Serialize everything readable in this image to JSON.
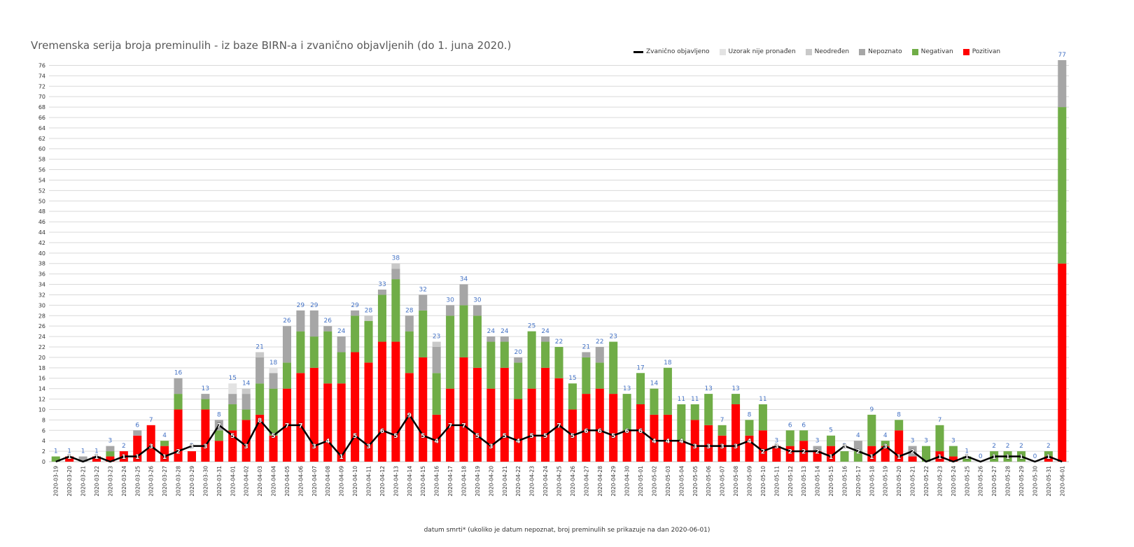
{
  "chart_data": {
    "type": "bar",
    "title": "Vremenska serija broja preminulih - iz baze BIRN-a i zvanično objavljenih (do 1. juna 2020.)",
    "xlabel": "datum smrti*  (ukoliko je datum nepoznat, broj preminulih se prikazuje na dan 2020-06-01)",
    "ylabel": "",
    "ylim": [
      0,
      77
    ],
    "yticks": [
      0,
      2,
      4,
      6,
      8,
      10,
      12,
      14,
      16,
      18,
      20,
      22,
      24,
      26,
      28,
      30,
      32,
      34,
      36,
      38,
      40,
      42,
      44,
      46,
      48,
      50,
      52,
      54,
      56,
      58,
      60,
      62,
      64,
      66,
      68,
      70,
      72,
      74,
      76
    ],
    "grid": "horizontal",
    "legend_position": "top-right",
    "categories": [
      "2020-03-19",
      "2020-03-20",
      "2020-03-21",
      "2020-03-22",
      "2020-03-23",
      "2020-03-24",
      "2020-03-25",
      "2020-03-26",
      "2020-03-27",
      "2020-03-28",
      "2020-03-29",
      "2020-03-30",
      "2020-03-31",
      "2020-04-01",
      "2020-04-02",
      "2020-04-03",
      "2020-04-04",
      "2020-04-05",
      "2020-04-06",
      "2020-04-07",
      "2020-04-08",
      "2020-04-09",
      "2020-04-10",
      "2020-04-11",
      "2020-04-12",
      "2020-04-13",
      "2020-04-14",
      "2020-04-15",
      "2020-04-16",
      "2020-04-17",
      "2020-04-18",
      "2020-04-19",
      "2020-04-20",
      "2020-04-21",
      "2020-04-22",
      "2020-04-23",
      "2020-04-24",
      "2020-04-25",
      "2020-04-26",
      "2020-04-27",
      "2020-04-28",
      "2020-04-29",
      "2020-04-30",
      "2020-05-01",
      "2020-05-02",
      "2020-05-03",
      "2020-05-04",
      "2020-05-05",
      "2020-05-06",
      "2020-05-07",
      "2020-05-08",
      "2020-05-09",
      "2020-05-10",
      "2020-05-11",
      "2020-05-12",
      "2020-05-13",
      "2020-05-14",
      "2020-05-15",
      "2020-05-16",
      "2020-05-17",
      "2020-05-18",
      "2020-05-19",
      "2020-05-20",
      "2020-05-21",
      "2020-05-22",
      "2020-05-23",
      "2020-05-24",
      "2020-05-25",
      "2020-05-26",
      "2020-05-27",
      "2020-05-28",
      "2020-05-29",
      "2020-05-30",
      "2020-05-31",
      "2020-06-01"
    ],
    "totals": [
      1,
      1,
      1,
      1,
      3,
      2,
      6,
      7,
      4,
      16,
      2,
      13,
      8,
      15,
      14,
      21,
      18,
      26,
      29,
      29,
      26,
      24,
      29,
      28,
      33,
      38,
      28,
      32,
      23,
      30,
      34,
      30,
      24,
      24,
      20,
      25,
      24,
      22,
      15,
      21,
      22,
      23,
      13,
      17,
      14,
      18,
      11,
      11,
      13,
      7,
      13,
      8,
      11,
      3,
      6,
      6,
      3,
      5,
      2,
      4,
      9,
      4,
      8,
      3,
      3,
      7,
      3,
      1,
      0,
      2,
      2,
      2,
      0,
      2,
      77
    ],
    "series": [
      {
        "name": "Pozitivan",
        "color": "#ff0000",
        "values": [
          0,
          1,
          0,
          1,
          1,
          2,
          5,
          7,
          3,
          10,
          2,
          10,
          4,
          6,
          8,
          9,
          5,
          14,
          17,
          18,
          15,
          15,
          21,
          19,
          23,
          23,
          17,
          20,
          9,
          14,
          20,
          18,
          14,
          18,
          12,
          14,
          18,
          16,
          10,
          13,
          14,
          13,
          6,
          11,
          9,
          9,
          4,
          8,
          7,
          5,
          11,
          5,
          6,
          3,
          3,
          4,
          2,
          3,
          0,
          0,
          3,
          3,
          6,
          1,
          0,
          2,
          1,
          0,
          0,
          0,
          0,
          0,
          0,
          1,
          38
        ]
      },
      {
        "name": "Negativan",
        "color": "#70ad47",
        "values": [
          1,
          0,
          0,
          0,
          1,
          0,
          0,
          0,
          1,
          3,
          0,
          2,
          2,
          5,
          2,
          6,
          9,
          5,
          8,
          6,
          10,
          6,
          7,
          8,
          9,
          12,
          8,
          9,
          8,
          14,
          10,
          10,
          9,
          5,
          7,
          11,
          5,
          6,
          5,
          7,
          5,
          10,
          7,
          6,
          5,
          9,
          7,
          3,
          6,
          2,
          2,
          3,
          5,
          0,
          3,
          2,
          0,
          2,
          2,
          2,
          6,
          1,
          2,
          0,
          3,
          5,
          2,
          1,
          0,
          2,
          2,
          2,
          0,
          1,
          30
        ]
      },
      {
        "name": "Nepoznato",
        "color": "#a6a6a6",
        "values": [
          0,
          0,
          1,
          0,
          1,
          0,
          1,
          0,
          0,
          3,
          0,
          1,
          2,
          2,
          3,
          5,
          3,
          7,
          4,
          5,
          1,
          3,
          1,
          0,
          1,
          2,
          3,
          3,
          5,
          2,
          4,
          2,
          1,
          1,
          1,
          0,
          1,
          0,
          0,
          1,
          3,
          0,
          0,
          0,
          0,
          0,
          0,
          0,
          0,
          0,
          0,
          0,
          0,
          0,
          0,
          0,
          1,
          0,
          0,
          2,
          0,
          0,
          0,
          2,
          0,
          0,
          0,
          0,
          0,
          0,
          0,
          0,
          0,
          0,
          9
        ]
      },
      {
        "name": "Neodređen",
        "color": "#c9c9c9",
        "values": [
          0,
          0,
          0,
          0,
          0,
          0,
          0,
          0,
          0,
          0,
          0,
          0,
          0,
          0,
          1,
          1,
          0,
          0,
          0,
          0,
          0,
          0,
          0,
          1,
          0,
          1,
          0,
          0,
          1,
          0,
          0,
          0,
          0,
          0,
          0,
          0,
          0,
          0,
          0,
          0,
          0,
          0,
          0,
          0,
          0,
          0,
          0,
          0,
          0,
          0,
          0,
          0,
          0,
          0,
          0,
          0,
          0,
          0,
          0,
          0,
          0,
          0,
          0,
          0,
          0,
          0,
          0,
          0,
          0,
          0,
          0,
          0,
          0,
          0,
          0
        ]
      },
      {
        "name": "Uzorak nije pronađen",
        "color": "#e3e3e3",
        "values": [
          0,
          0,
          0,
          0,
          0,
          0,
          0,
          0,
          0,
          0,
          0,
          0,
          0,
          2,
          0,
          0,
          1,
          0,
          0,
          0,
          0,
          0,
          0,
          0,
          0,
          0,
          0,
          0,
          0,
          0,
          0,
          0,
          0,
          0,
          0,
          0,
          0,
          0,
          0,
          0,
          0,
          0,
          0,
          0,
          0,
          0,
          0,
          0,
          0,
          0,
          0,
          0,
          0,
          0,
          0,
          0,
          0,
          0,
          0,
          0,
          0,
          0,
          0,
          0,
          0,
          0,
          0,
          0,
          0,
          0,
          0,
          0,
          0,
          0,
          0
        ]
      }
    ],
    "line": {
      "name": "Zvanično objavljeno",
      "color": "#000000",
      "values": [
        0,
        1,
        0,
        1,
        0,
        1,
        1,
        3,
        1,
        2,
        3,
        3,
        7,
        5,
        3,
        8,
        5,
        7,
        7,
        3,
        4,
        1,
        5,
        3,
        6,
        5,
        9,
        5,
        4,
        7,
        7,
        5,
        3,
        5,
        4,
        5,
        5,
        7,
        5,
        6,
        6,
        5,
        6,
        6,
        4,
        4,
        4,
        3,
        3,
        3,
        3,
        4,
        2,
        3,
        2,
        2,
        2,
        1,
        3,
        2,
        1,
        3,
        1,
        2,
        0,
        1,
        0,
        1,
        0,
        1,
        1,
        1,
        0,
        1,
        0
      ]
    }
  }
}
